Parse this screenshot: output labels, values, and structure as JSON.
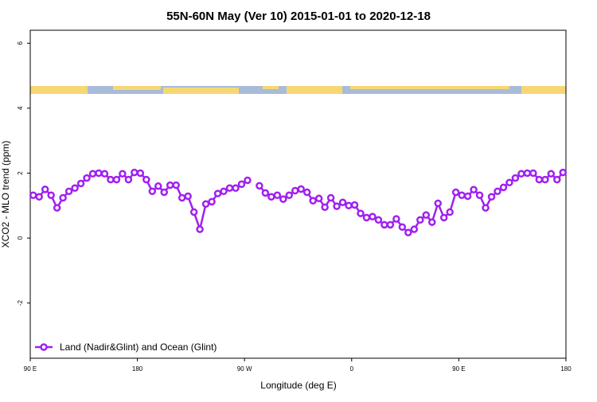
{
  "chart_data": {
    "type": "line",
    "title": "55N-60N May (Ver 10)   2015-01-01 to 2020-12-18",
    "x_label": "Longitude (deg E)",
    "y_label": "XCO2 - MLO trend (ppm)",
    "x": [
      92.5,
      97.5,
      102.5,
      107.5,
      112.5,
      117.5,
      122.5,
      127.5,
      132.5,
      137.5,
      142.5,
      147.5,
      152.5,
      157.5,
      162.5,
      167.5,
      172.5,
      177.5,
      182.5,
      187.5,
      192.5,
      197.5,
      202.5,
      207.5,
      212.5,
      217.5,
      222.5,
      227.5,
      232.5,
      237.5,
      242.5,
      247.5,
      252.5,
      257.5,
      262.5,
      267.5,
      272.5,
      277.5,
      282.5,
      287.5,
      292.5,
      297.5,
      302.5,
      307.5,
      312.5,
      317.5,
      322.5,
      327.5,
      332.5,
      337.5,
      342.5,
      347.5,
      352.5,
      357.5,
      362.5,
      367.5,
      372.5,
      377.5,
      382.5,
      387.5,
      392.5,
      397.5,
      402.5,
      407.5,
      412.5,
      417.5,
      422.5,
      427.5,
      432.5,
      437.5,
      442.5,
      447.5,
      452.5,
      457.5,
      462.5,
      467.5,
      472.5,
      477.5,
      482.5,
      487.5,
      492.5,
      497.5,
      502.5,
      507.5,
      512.5,
      517.5,
      522.5,
      527.5,
      532.5,
      537.5
    ],
    "series": [
      {
        "name": "Land (Nadir&Glint) and Ocean (Glint)",
        "color": "#a020f0",
        "values": [
          1.32,
          1.27,
          1.5,
          1.32,
          0.93,
          1.24,
          1.44,
          1.54,
          1.68,
          1.85,
          1.98,
          2.0,
          1.98,
          1.8,
          1.8,
          1.98,
          1.8,
          2.02,
          2.0,
          1.8,
          1.44,
          1.6,
          1.41,
          1.63,
          1.63,
          1.24,
          1.29,
          0.8,
          0.27,
          1.05,
          1.12,
          1.37,
          1.44,
          1.54,
          1.54,
          1.66,
          1.78,
          null,
          1.61,
          1.39,
          1.27,
          1.32,
          1.2,
          1.32,
          1.46,
          1.51,
          1.41,
          1.15,
          1.22,
          0.95,
          1.24,
          0.98,
          1.1,
          1.0,
          1.02,
          0.76,
          0.63,
          0.66,
          0.56,
          0.41,
          0.41,
          0.59,
          0.34,
          0.17,
          0.27,
          0.56,
          0.71,
          0.49,
          1.07,
          0.63,
          0.8,
          1.41,
          1.32,
          1.29,
          1.49,
          1.32,
          0.93,
          1.27,
          1.44,
          1.56,
          1.71,
          1.85,
          1.98,
          2.0,
          2.0,
          1.8,
          1.8,
          1.98,
          1.8,
          2.02
        ]
      }
    ],
    "xlim": [
      90,
      540
    ],
    "xticks": [
      {
        "value": 90,
        "label": "90 E"
      },
      180,
      {
        "value": 270,
        "label": "90 W"
      },
      {
        "value": 360,
        "label": "0"
      },
      {
        "value": 450,
        "label": "90 E"
      },
      {
        "value": 540,
        "label": "180"
      }
    ],
    "ylim": [
      -3.7,
      6.4
    ],
    "yticks": [
      -2,
      0,
      2,
      4,
      6
    ],
    "grid": false,
    "legend": "bottom-left"
  }
}
